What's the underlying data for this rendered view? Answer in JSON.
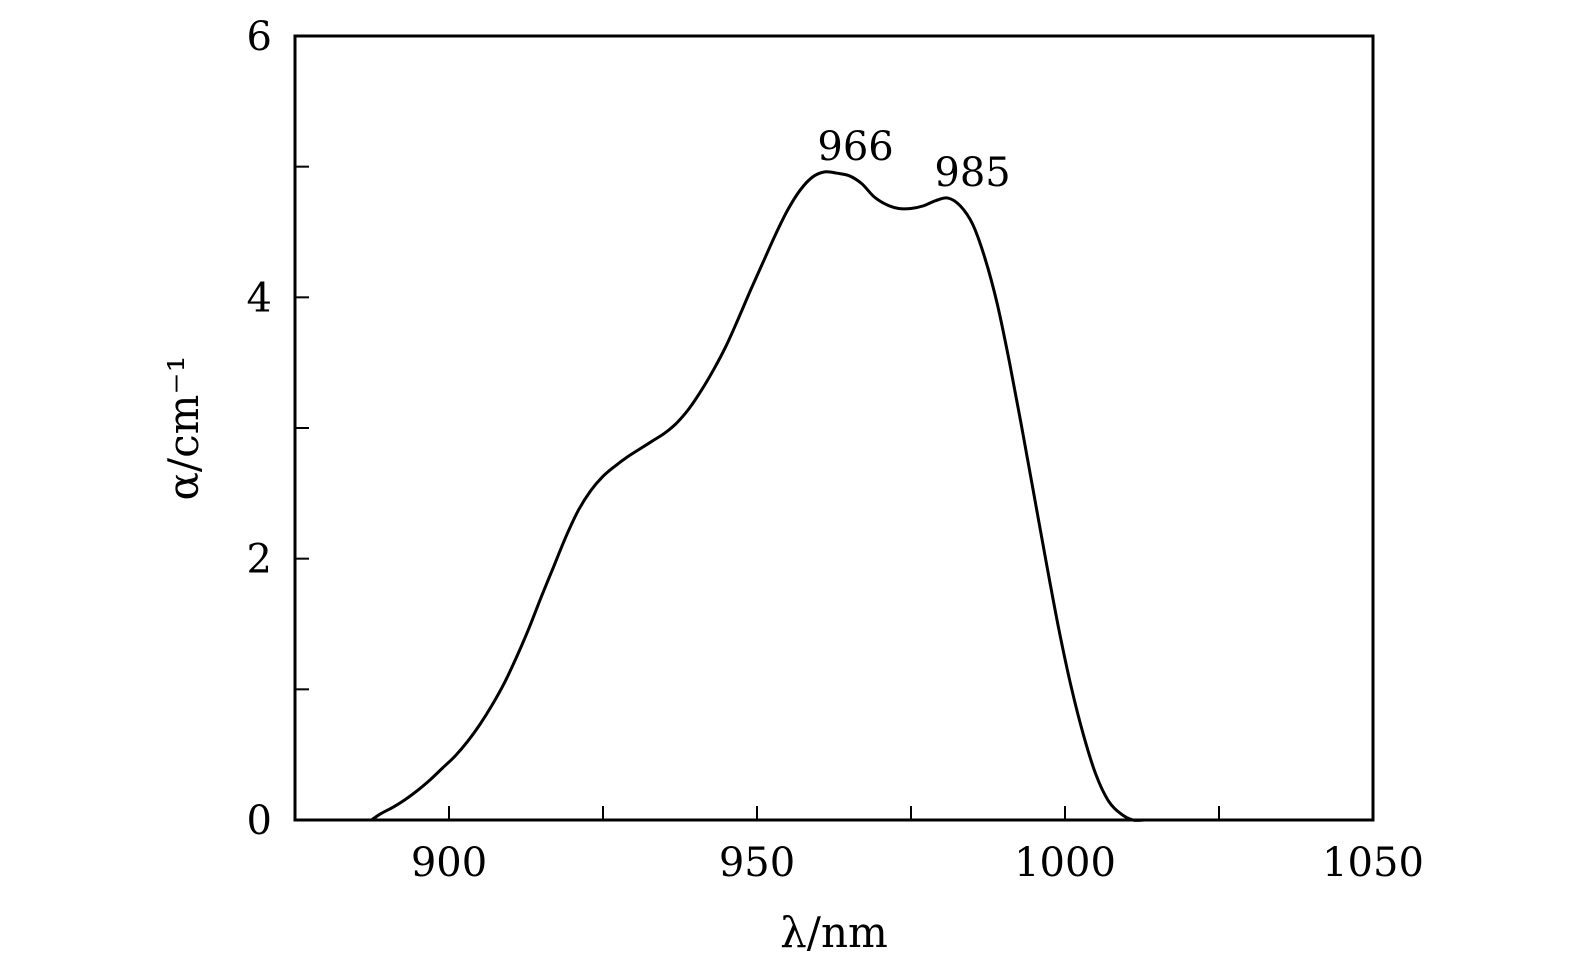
{
  "chart_data": {
    "type": "line",
    "title": "",
    "xlabel": "λ/nm",
    "ylabel": "α/cm⁻¹",
    "xlim": [
      875,
      1050
    ],
    "ylim": [
      0,
      6
    ],
    "x_ticks": [
      900,
      950,
      1000,
      1050
    ],
    "x_tick_labels": [
      "900",
      "950",
      "1000",
      "1050"
    ],
    "x_minor_ticks": [
      925,
      975,
      1025
    ],
    "y_ticks": [
      0,
      2,
      4,
      6
    ],
    "y_tick_labels": [
      "0",
      "2",
      "4",
      "6"
    ],
    "y_minor_ticks": [
      1,
      3,
      5
    ],
    "grid": false,
    "legend": "none",
    "series": [
      {
        "color": "#000000",
        "x": [
          887.4,
          889,
          891,
          893,
          895,
          897,
          899,
          901,
          903,
          905,
          907,
          909,
          911,
          913,
          915,
          917,
          919,
          921,
          923,
          925,
          927,
          929,
          931,
          933,
          935,
          937,
          939,
          941,
          943,
          945,
          947,
          949,
          951,
          953,
          955,
          957,
          959,
          961,
          963,
          965,
          967,
          969,
          971,
          973,
          975,
          977,
          979,
          981,
          983,
          985,
          987,
          989,
          991,
          993,
          995,
          997,
          999,
          1001,
          1003,
          1005,
          1007,
          1009,
          1011,
          1013,
          1015,
          1016.5
        ],
        "y": [
          0.0,
          0.05,
          0.1,
          0.16,
          0.23,
          0.31,
          0.4,
          0.49,
          0.6,
          0.73,
          0.88,
          1.05,
          1.25,
          1.47,
          1.71,
          1.94,
          2.17,
          2.37,
          2.52,
          2.63,
          2.71,
          2.78,
          2.84,
          2.9,
          2.96,
          3.04,
          3.15,
          3.29,
          3.45,
          3.63,
          3.84,
          4.06,
          4.27,
          4.48,
          4.67,
          4.82,
          4.92,
          4.96,
          4.95,
          4.93,
          4.87,
          4.77,
          4.71,
          4.68,
          4.68,
          4.7,
          4.74,
          4.76,
          4.7,
          4.56,
          4.3,
          3.95,
          3.5,
          3.0,
          2.48,
          1.96,
          1.46,
          1.02,
          0.65,
          0.35,
          0.15,
          0.05,
          0.0,
          0.0,
          0.0,
          0.0
        ]
      }
    ],
    "annotations": [
      {
        "text": "966",
        "x": 966,
        "y": 4.96
      },
      {
        "text": "985",
        "x": 985,
        "y": 4.76
      }
    ]
  }
}
